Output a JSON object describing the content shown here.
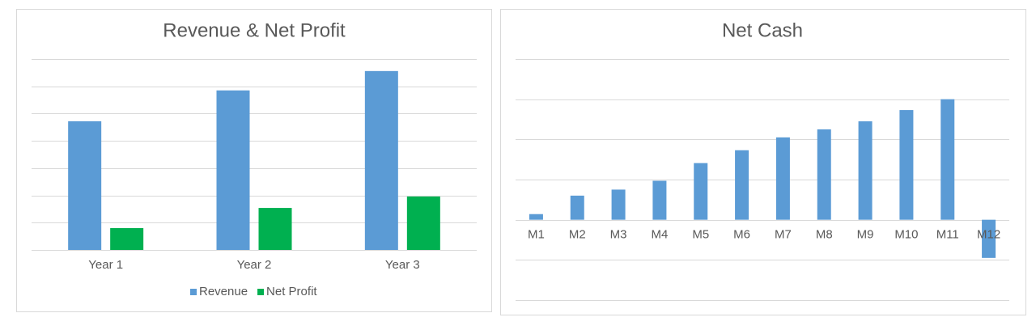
{
  "chart_data": [
    {
      "type": "bar",
      "title": "Revenue & Net Profit",
      "categories": [
        "Year 1",
        "Year 2",
        "Year 3"
      ],
      "series": [
        {
          "name": "Revenue",
          "color": "#5b9bd5",
          "values": [
            4.72,
            5.85,
            6.56
          ]
        },
        {
          "name": "Net Profit",
          "color": "#00b050",
          "values": [
            0.8,
            1.54,
            1.96
          ]
        }
      ],
      "ylim": [
        0,
        7
      ],
      "yticks": [
        0,
        1,
        2,
        3,
        4,
        5,
        6,
        7
      ],
      "grid": true,
      "legend": "bottom"
    },
    {
      "type": "bar",
      "title": "Net Cash",
      "categories": [
        "M1",
        "M2",
        "M3",
        "M4",
        "M5",
        "M6",
        "M7",
        "M8",
        "M9",
        "M10",
        "M11",
        "M12"
      ],
      "values": [
        0.14,
        0.6,
        0.75,
        0.97,
        1.41,
        1.73,
        2.05,
        2.25,
        2.45,
        2.73,
        3.0,
        -0.95
      ],
      "color": "#5b9bd5",
      "ylim": [
        -2,
        4
      ],
      "yticks": [
        -2,
        -1,
        0,
        1,
        2,
        3,
        4
      ],
      "grid": true
    }
  ]
}
